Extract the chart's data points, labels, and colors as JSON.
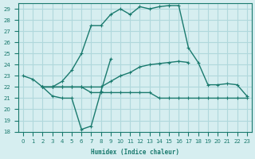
{
  "xlabel": "Humidex (Indice chaleur)",
  "bg_color": "#d6eef0",
  "grid_color": "#b0d8dc",
  "line_color": "#1a7a6e",
  "xlim": [
    -0.5,
    23.5
  ],
  "ylim": [
    18,
    29.5
  ],
  "yticks": [
    18,
    19,
    20,
    21,
    22,
    23,
    24,
    25,
    26,
    27,
    28,
    29
  ],
  "xticks": [
    0,
    1,
    2,
    3,
    4,
    5,
    6,
    7,
    8,
    9,
    10,
    11,
    12,
    13,
    14,
    15,
    16,
    17,
    18,
    19,
    20,
    21,
    22,
    23
  ],
  "line1_x": [
    0,
    1,
    2,
    3,
    4,
    5,
    6,
    7,
    8,
    9
  ],
  "line1_y": [
    23,
    22.7,
    22,
    21.2,
    21.0,
    21.0,
    18.2,
    18.5,
    21.6,
    24.5
  ],
  "line2_x": [
    2,
    3,
    4,
    5,
    6,
    7,
    8,
    9,
    10,
    11,
    12,
    13,
    14,
    15,
    16,
    17,
    18,
    19,
    20,
    21,
    22,
    23
  ],
  "line2_y": [
    22,
    22,
    22,
    22,
    22,
    21.5,
    21.5,
    21.5,
    21.5,
    21.5,
    21.5,
    21.5,
    21.0,
    21.0,
    21.0,
    21.0,
    21.0,
    21.0,
    21.0,
    21.0,
    21.0,
    21.0
  ],
  "line3_x": [
    2,
    3,
    4,
    5,
    6,
    7,
    8,
    9,
    10,
    11,
    12,
    13,
    14,
    15,
    16,
    17,
    18,
    19,
    20,
    21,
    22,
    23
  ],
  "line3_y": [
    22,
    22,
    22.5,
    23.5,
    25.0,
    27.5,
    27.5,
    28.5,
    29.0,
    28.5,
    29.2,
    29.0,
    29.2,
    29.3,
    29.3,
    25.5,
    24.2,
    22.2,
    22.2,
    22.3,
    22.2,
    21.2
  ],
  "line4_x": [
    2,
    3,
    4,
    5,
    6,
    7,
    8,
    9,
    10,
    11,
    12,
    13,
    14,
    15,
    16,
    17
  ],
  "line4_y": [
    22,
    22,
    22,
    22,
    22,
    22,
    22,
    22.5,
    23.0,
    23.3,
    23.8,
    24.0,
    24.1,
    24.2,
    24.3,
    24.2
  ]
}
